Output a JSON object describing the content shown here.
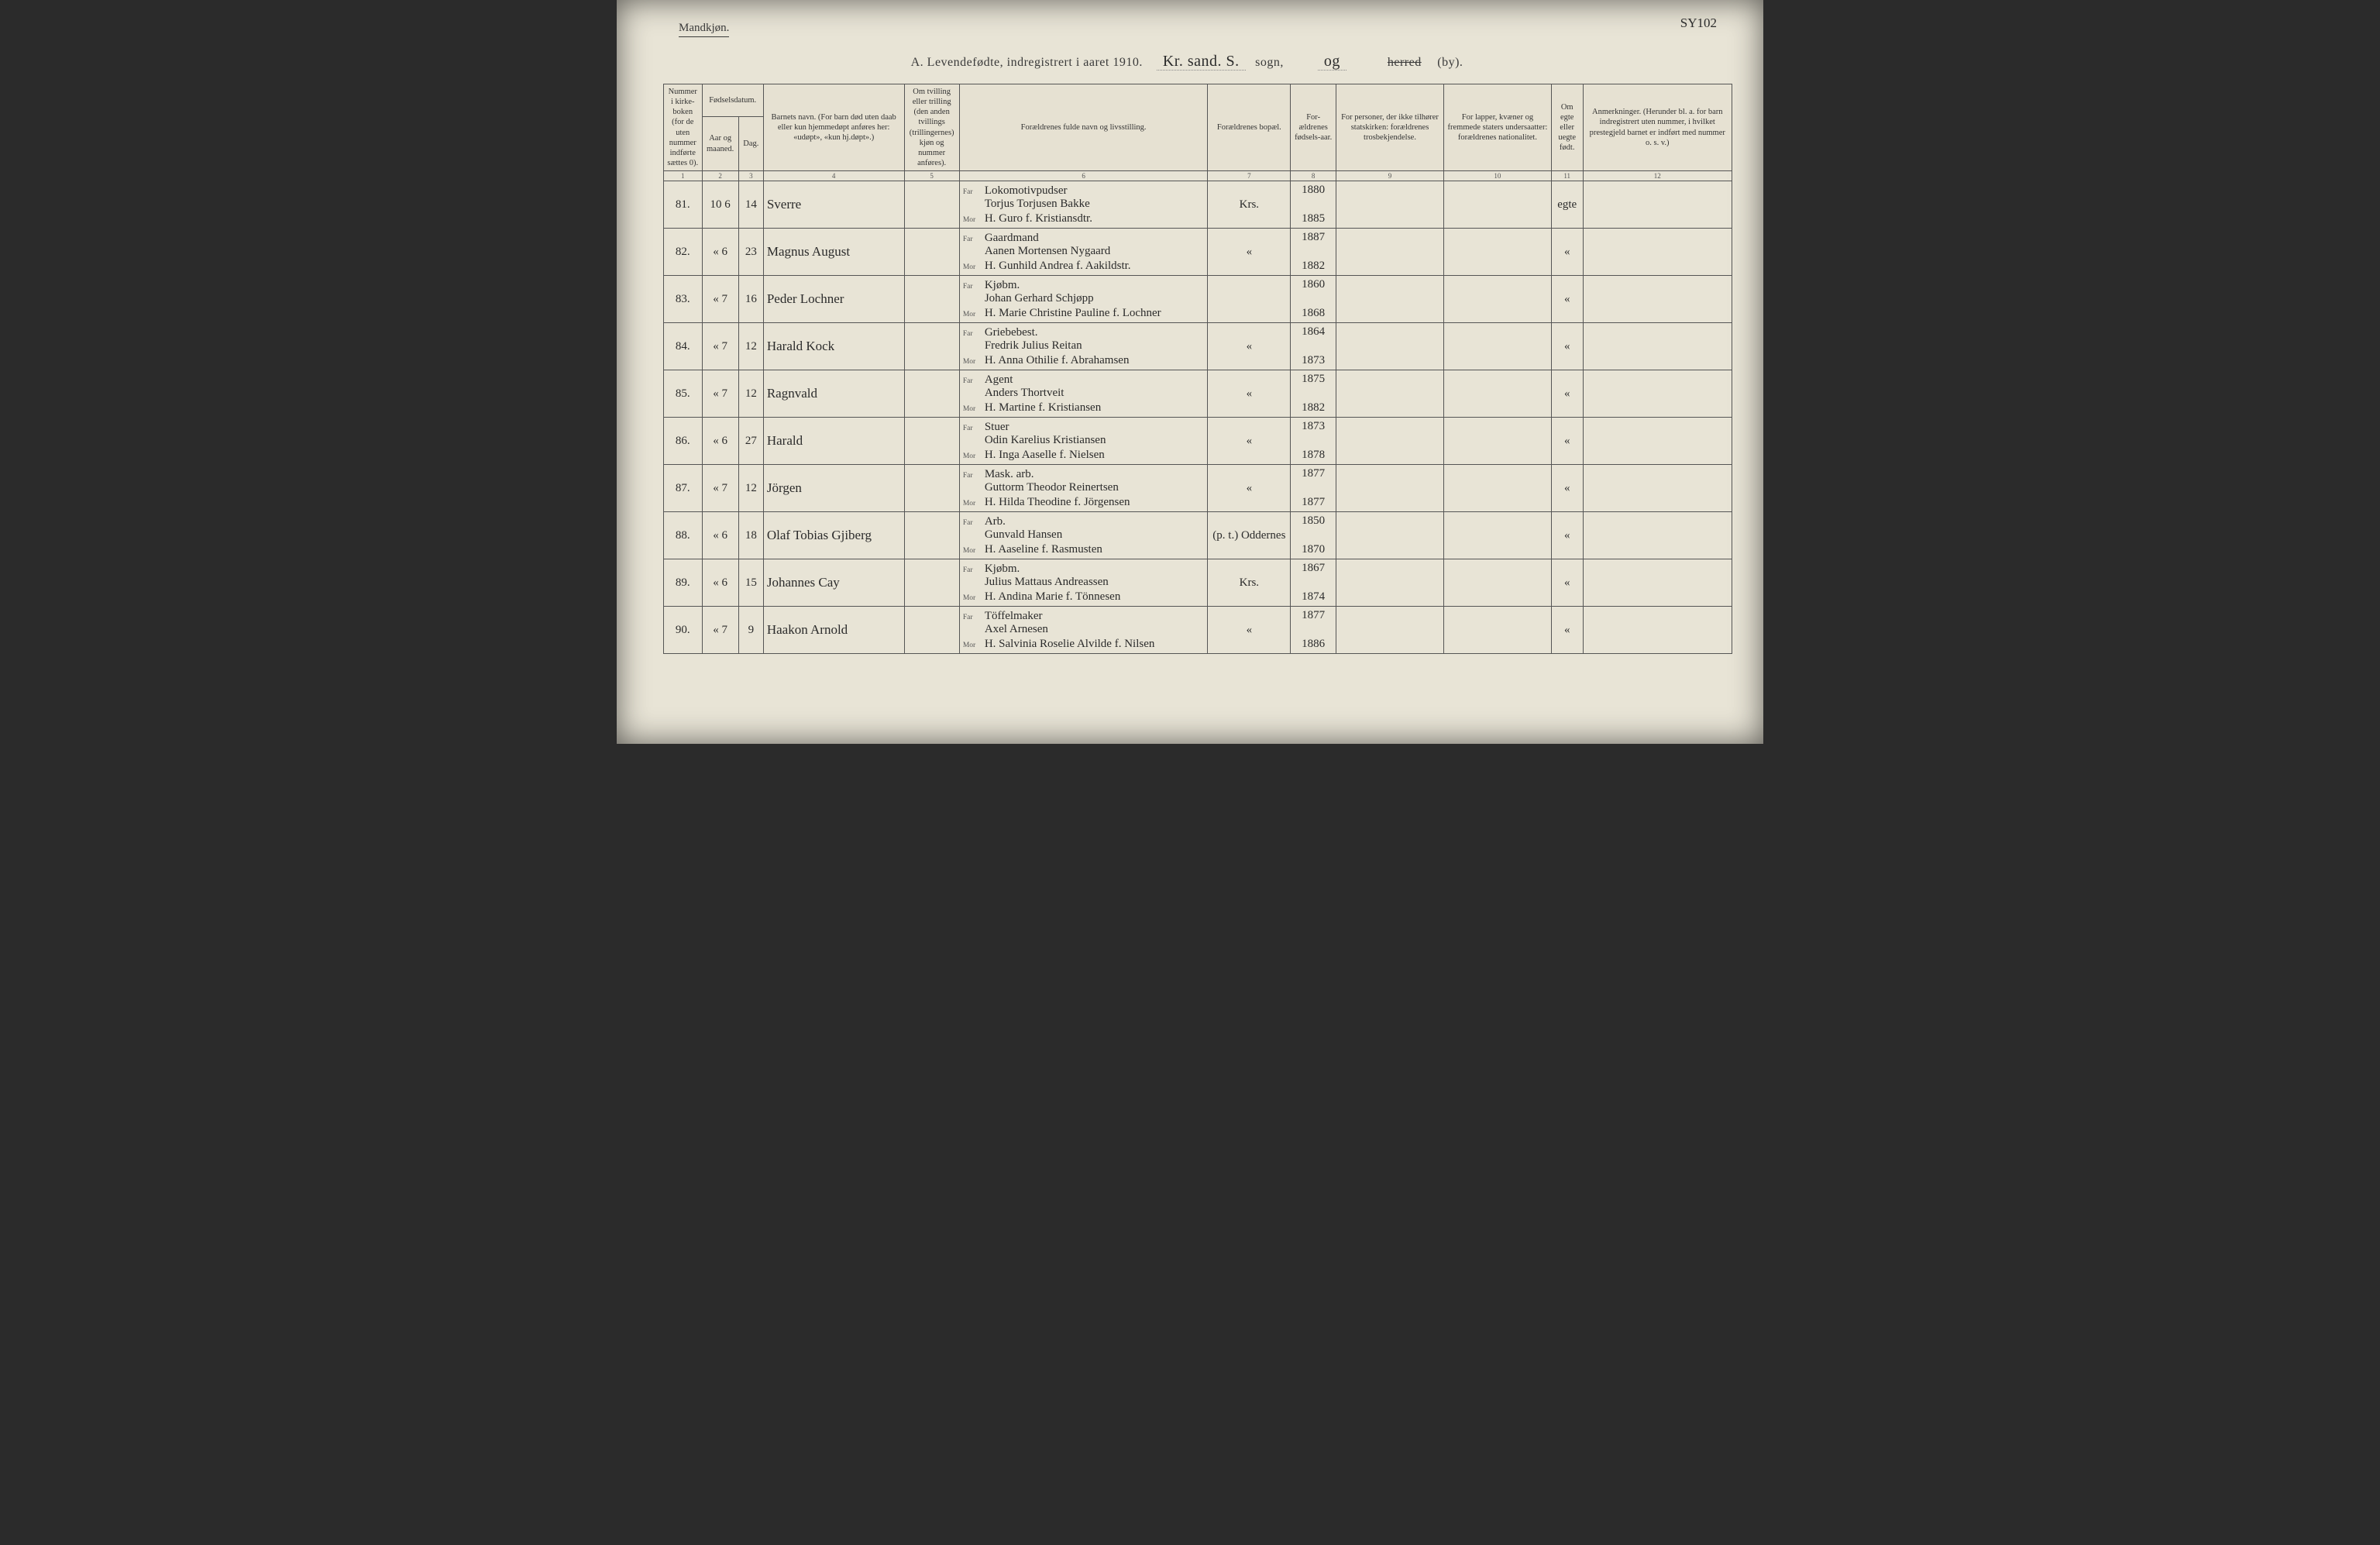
{
  "header": {
    "gender_label": "Mandkjøn.",
    "page_annotation": "SY102",
    "title_prefix": "A.  Levendefødte, indregistrert i aaret 191",
    "year_suffix": "0",
    "sogn_text": "Kr. sand. S.",
    "sogn_label": "sogn,",
    "og_label": "og",
    "herred_strike": "herred",
    "by_label": "(by)."
  },
  "columns": {
    "c1": "Nummer i kirke-boken (for de uten nummer indførte sættes 0).",
    "c2_group": "Fødselsdatum.",
    "c2": "Aar og maaned.",
    "c3": "Dag.",
    "c4": "Barnets navn.\n(For barn død uten daab eller kun hjemmedøpt anføres her: «udøpt», «kun hj.døpt».)",
    "c5": "Om tvilling eller trilling (den anden tvillings (trillingernes) kjøn og nummer anføres).",
    "c6": "Forældrenes fulde navn og livsstilling.",
    "c7": "Forældrenes bopæl.",
    "c8": "For-ældrenes fødsels-aar.",
    "c9": "For personer, der ikke tilhører statskirken: forældrenes trosbekjendelse.",
    "c10": "For lapper, kvæner og fremmede staters undersaatter: forældrenes nationalitet.",
    "c11": "Om egte eller uegte født.",
    "c12": "Anmerkninger.\n(Herunder bl. a. for barn indregistrert uten nummer, i hvilket prestegjeld barnet er indført med nummer o. s. v.)"
  },
  "colnums": [
    "1",
    "2",
    "3",
    "4",
    "5",
    "6",
    "7",
    "8",
    "9",
    "10",
    "11",
    "12"
  ],
  "far_label": "Far",
  "mor_label": "Mor",
  "rows": [
    {
      "num": "81.",
      "mon": "10   6",
      "day": "14",
      "name": "Sverre",
      "far": "Lokomotivpudser\nTorjus Torjusen Bakke",
      "mor": "H. Guro f. Kristiansdtr.",
      "bopel": "Krs.",
      "year_far": "1880",
      "year_mor": "1885",
      "egte": "egte"
    },
    {
      "num": "82.",
      "mon": "«   6",
      "day": "23",
      "name": "Magnus August",
      "far": "Gaardmand\nAanen Mortensen Nygaard",
      "mor": "H. Gunhild Andrea f. Aakildstr.",
      "bopel": "«",
      "year_far": "1887",
      "year_mor": "1882",
      "egte": "«"
    },
    {
      "num": "83.",
      "mon": "«   7",
      "day": "16",
      "name": "Peder Lochner",
      "far": "Kjøbm.\nJohan Gerhard Schjøpp",
      "mor": "H. Marie Christine Pauline f. Lochner",
      "bopel": "",
      "year_far": "1860",
      "year_mor": "1868",
      "egte": "«"
    },
    {
      "num": "84.",
      "mon": "«   7",
      "day": "12",
      "name": "Harald Kock",
      "far": "Griebebest.\nFredrik Julius Reitan",
      "mor": "H. Anna Othilie f. Abrahamsen",
      "bopel": "«",
      "year_far": "1864",
      "year_mor": "1873",
      "egte": "«"
    },
    {
      "num": "85.",
      "mon": "«   7",
      "day": "12",
      "name": "Ragnvald",
      "far": "Agent\nAnders Thortveit",
      "mor": "H. Martine f. Kristiansen",
      "bopel": "«",
      "year_far": "1875",
      "year_mor": "1882",
      "egte": "«"
    },
    {
      "num": "86.",
      "mon": "«   6",
      "day": "27",
      "name": "Harald",
      "far": "Stuer\nOdin Karelius Kristiansen",
      "mor": "H. Inga Aaselle f. Nielsen",
      "bopel": "«",
      "year_far": "1873",
      "year_mor": "1878",
      "egte": "«"
    },
    {
      "num": "87.",
      "mon": "«   7",
      "day": "12",
      "name": "Jörgen",
      "far": "Mask. arb.\nGuttorm Theodor Reinertsen",
      "mor": "H. Hilda Theodine f. Jörgensen",
      "bopel": "«",
      "year_far": "1877",
      "year_mor": "1877",
      "egte": "«"
    },
    {
      "num": "88.",
      "mon": "«   6",
      "day": "18",
      "name": "Olaf Tobias Gjiberg",
      "far": "Arb.\nGunvald Hansen",
      "mor": "H. Aaseline f. Rasmusten",
      "bopel": "(p. t.) Oddernes",
      "year_far": "1850",
      "year_mor": "1870",
      "egte": "«"
    },
    {
      "num": "89.",
      "mon": "«   6",
      "day": "15",
      "name": "Johannes Cay",
      "far": "Kjøbm.\nJulius Mattaus Andreassen",
      "mor": "H. Andina Marie f. Tönnesen",
      "bopel": "Krs.",
      "year_far": "1867",
      "year_mor": "1874",
      "egte": "«"
    },
    {
      "num": "90.",
      "mon": "«   7",
      "day": "9",
      "name": "Haakon Arnold",
      "far": "Töffelmaker\nAxel Arnesen",
      "mor": "H. Salvinia Roselie Alvilde f. Nilsen",
      "bopel": "«",
      "year_far": "1877",
      "year_mor": "1886",
      "egte": "«"
    }
  ]
}
